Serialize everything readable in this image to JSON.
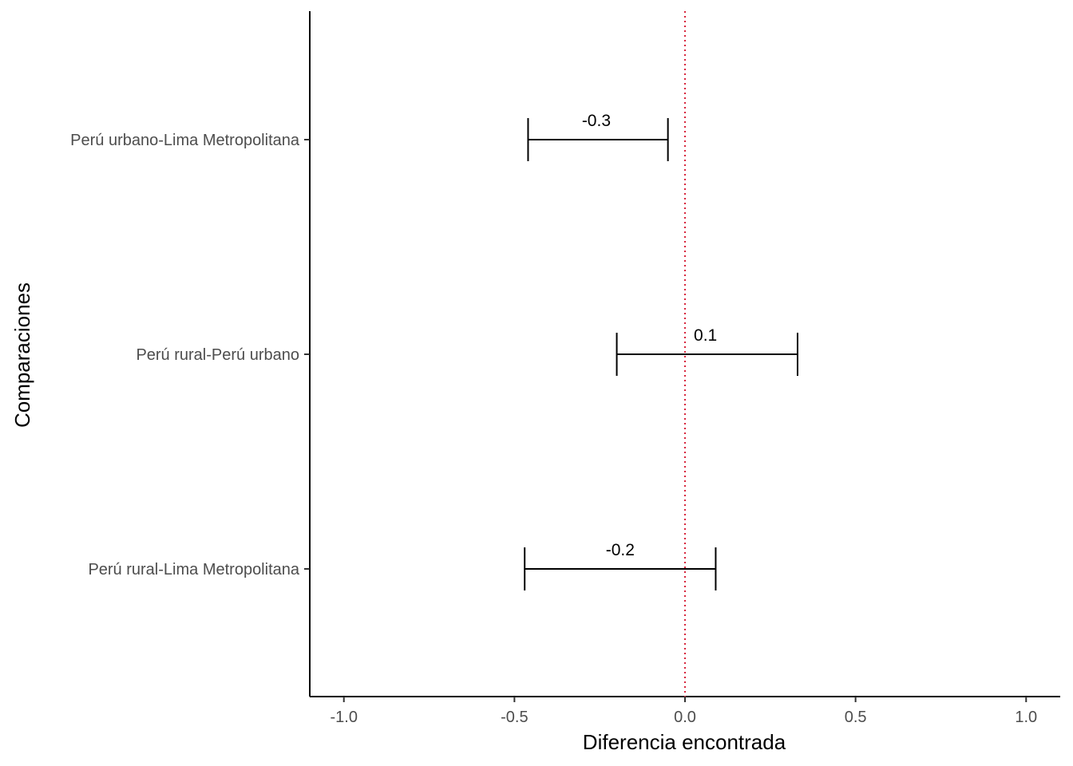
{
  "chart_data": {
    "type": "errorbar",
    "xlabel": "Diferencia encontrada",
    "ylabel": "Comparaciones",
    "xlim": [
      -1.1,
      1.1
    ],
    "x_ticks": [
      "-1.0",
      "-0.5",
      "0.0",
      "0.5",
      "1.0"
    ],
    "x_tick_values": [
      -1.0,
      -0.5,
      0.0,
      0.5,
      1.0
    ],
    "reference_line": {
      "x": 0,
      "style": "dotted",
      "color": "#d7263d"
    },
    "grid": false,
    "rows": [
      {
        "category": "Perú urbano-Lima Metropolitana",
        "estimate": -0.26,
        "lower": -0.46,
        "upper": -0.05,
        "label": "-0.3"
      },
      {
        "category": "Perú rural-Perú urbano",
        "estimate": 0.06,
        "lower": -0.2,
        "upper": 0.33,
        "label": "0.1"
      },
      {
        "category": "Perú rural-Lima Metropolitana",
        "estimate": -0.19,
        "lower": -0.47,
        "upper": 0.09,
        "label": "-0.2"
      }
    ]
  }
}
